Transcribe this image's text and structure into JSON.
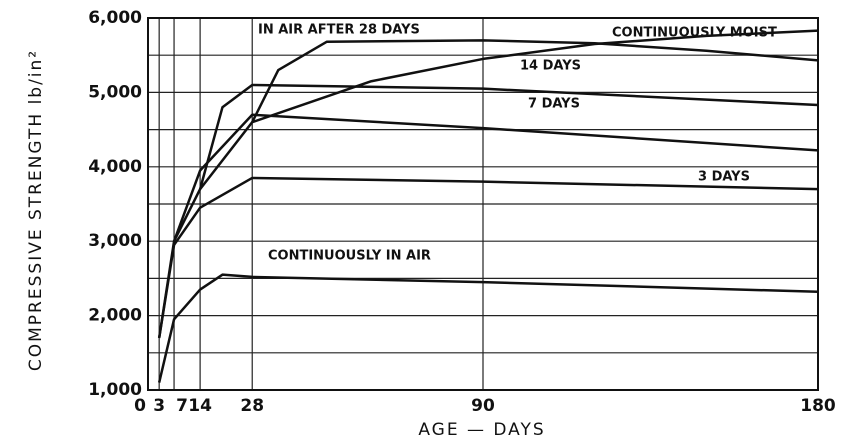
{
  "chart_data": {
    "type": "line",
    "xlabel": "AGE — DAYS",
    "ylabel": "COMPRESSIVE STRENGTH lb/in²",
    "xlim": [
      0,
      180
    ],
    "xticks": [
      0,
      3,
      7,
      14,
      28,
      90,
      180
    ],
    "ylim": [
      1000,
      6000
    ],
    "yticks": [
      {
        "value": 1000,
        "label": "1,000"
      },
      {
        "value": 2000,
        "label": "2,000"
      },
      {
        "value": 3000,
        "label": "3,000"
      },
      {
        "value": 4000,
        "label": "4,000"
      },
      {
        "value": 5000,
        "label": "5,000"
      },
      {
        "value": 6000,
        "label": "6,000"
      }
    ],
    "minor_yticks": [
      1500,
      2500,
      3500,
      4500,
      5500
    ],
    "grid": true,
    "series": [
      {
        "name": "CONTINUOUSLY MOIST",
        "color": "#111111",
        "x": [
          3,
          7,
          14,
          28,
          60,
          90,
          120,
          150,
          180
        ],
        "values": [
          1700,
          3000,
          3700,
          4600,
          5150,
          5450,
          5650,
          5760,
          5830
        ]
      },
      {
        "name": "IN AIR AFTER 28 DAYS",
        "color": "#111111",
        "x": [
          28,
          35,
          48,
          90,
          120,
          150,
          180
        ],
        "values": [
          4600,
          5300,
          5680,
          5700,
          5660,
          5560,
          5430
        ]
      },
      {
        "name": "14 DAYS",
        "color": "#111111",
        "x": [
          14,
          20,
          28,
          90,
          180
        ],
        "values": [
          3700,
          4800,
          5100,
          5050,
          4830
        ]
      },
      {
        "name": "7 DAYS",
        "color": "#111111",
        "x": [
          7,
          14,
          28,
          90,
          180
        ],
        "values": [
          3000,
          3950,
          4700,
          4520,
          4220
        ]
      },
      {
        "name": "3 DAYS",
        "color": "#111111",
        "x": [
          3,
          7,
          14,
          28,
          90,
          180
        ],
        "values": [
          1700,
          2950,
          3450,
          3850,
          3800,
          3700
        ]
      },
      {
        "name": "CONTINUOUSLY IN AIR",
        "color": "#111111",
        "x": [
          3,
          7,
          14,
          20,
          28,
          90,
          180
        ],
        "values": [
          1100,
          1950,
          2350,
          2550,
          2520,
          2450,
          2320
        ]
      }
    ]
  }
}
